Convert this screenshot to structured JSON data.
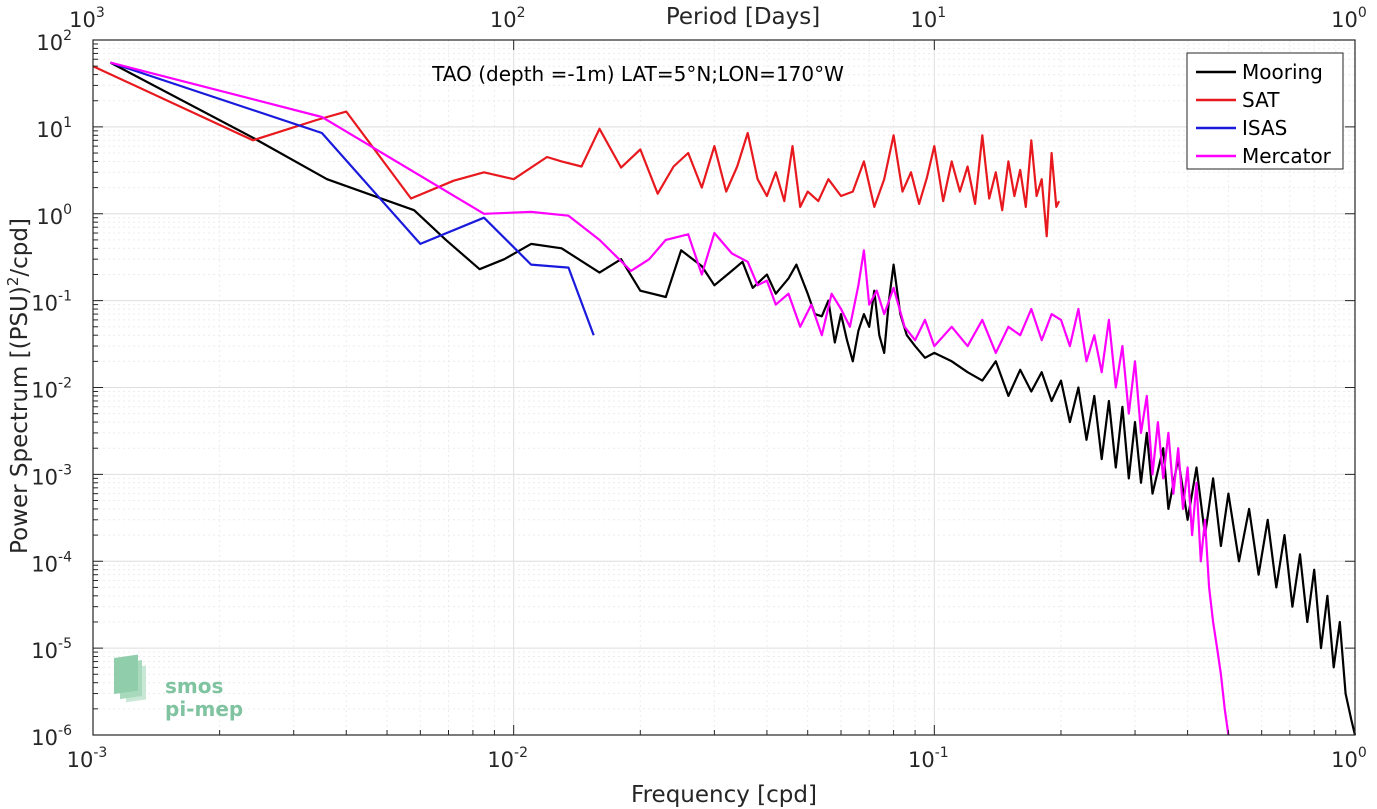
{
  "chart_data": {
    "type": "line",
    "title": "TAO (depth =-1m) LAT=5°N;LON=170°W",
    "xlabel": "Frequency [cpd]",
    "ylabel_main": "Power Spectrum [(PSU)",
    "ylabel_sup": "2",
    "ylabel_tail": "/cpd]",
    "top_xlabel": "Period [Days]",
    "xscale": "log",
    "yscale": "log",
    "xlim": [
      0.001,
      1
    ],
    "ylim": [
      1e-06,
      100
    ],
    "grid": true,
    "legend_position": "top-right",
    "x_ticks": [
      {
        "base": "10",
        "exp": "-3"
      },
      {
        "base": "10",
        "exp": "-2"
      },
      {
        "base": "10",
        "exp": "-1"
      },
      {
        "base": "10",
        "exp": "0"
      }
    ],
    "top_ticks": [
      {
        "base": "10",
        "exp": "3"
      },
      {
        "base": "10",
        "exp": "2"
      },
      {
        "base": "10",
        "exp": "1"
      },
      {
        "base": "10",
        "exp": "0"
      }
    ],
    "y_ticks": [
      {
        "base": "10",
        "exp": "-6"
      },
      {
        "base": "10",
        "exp": "-5"
      },
      {
        "base": "10",
        "exp": "-4"
      },
      {
        "base": "10",
        "exp": "-3"
      },
      {
        "base": "10",
        "exp": "-2"
      },
      {
        "base": "10",
        "exp": "-1"
      },
      {
        "base": "10",
        "exp": "0"
      },
      {
        "base": "10",
        "exp": "1"
      },
      {
        "base": "10",
        "exp": "2"
      }
    ],
    "series": [
      {
        "name": "Mooring",
        "color": "#000000",
        "points": [
          [
            0.0011,
            55
          ],
          [
            0.0024,
            7.5
          ],
          [
            0.0036,
            2.5
          ],
          [
            0.0058,
            1.1
          ],
          [
            0.0069,
            0.5
          ],
          [
            0.0083,
            0.23
          ],
          [
            0.0095,
            0.3
          ],
          [
            0.011,
            0.45
          ],
          [
            0.013,
            0.4
          ],
          [
            0.016,
            0.21
          ],
          [
            0.018,
            0.3
          ],
          [
            0.02,
            0.13
          ],
          [
            0.023,
            0.11
          ],
          [
            0.025,
            0.38
          ],
          [
            0.028,
            0.25
          ],
          [
            0.03,
            0.15
          ],
          [
            0.033,
            0.22
          ],
          [
            0.035,
            0.28
          ],
          [
            0.037,
            0.14
          ],
          [
            0.04,
            0.2
          ],
          [
            0.042,
            0.12
          ],
          [
            0.045,
            0.18
          ],
          [
            0.047,
            0.26
          ],
          [
            0.05,
            0.12
          ],
          [
            0.052,
            0.07
          ],
          [
            0.054,
            0.066
          ],
          [
            0.056,
            0.1
          ],
          [
            0.058,
            0.033
          ],
          [
            0.06,
            0.07
          ],
          [
            0.062,
            0.035
          ],
          [
            0.064,
            0.02
          ],
          [
            0.066,
            0.045
          ],
          [
            0.068,
            0.07
          ],
          [
            0.07,
            0.05
          ],
          [
            0.072,
            0.13
          ],
          [
            0.074,
            0.04
          ],
          [
            0.076,
            0.025
          ],
          [
            0.078,
            0.1
          ],
          [
            0.08,
            0.26
          ],
          [
            0.083,
            0.07
          ],
          [
            0.086,
            0.04
          ],
          [
            0.09,
            0.03
          ],
          [
            0.095,
            0.022
          ],
          [
            0.1,
            0.025
          ],
          [
            0.11,
            0.02
          ],
          [
            0.12,
            0.015
          ],
          [
            0.13,
            0.012
          ],
          [
            0.14,
            0.02
          ],
          [
            0.15,
            0.008
          ],
          [
            0.16,
            0.016
          ],
          [
            0.17,
            0.009
          ],
          [
            0.18,
            0.015
          ],
          [
            0.19,
            0.007
          ],
          [
            0.2,
            0.012
          ],
          [
            0.21,
            0.004
          ],
          [
            0.22,
            0.01
          ],
          [
            0.23,
            0.0025
          ],
          [
            0.24,
            0.008
          ],
          [
            0.25,
            0.0015
          ],
          [
            0.26,
            0.007
          ],
          [
            0.27,
            0.0012
          ],
          [
            0.28,
            0.006
          ],
          [
            0.29,
            0.0009
          ],
          [
            0.3,
            0.004
          ],
          [
            0.31,
            0.0008
          ],
          [
            0.32,
            0.003
          ],
          [
            0.33,
            0.0006
          ],
          [
            0.35,
            0.002
          ],
          [
            0.36,
            0.0004
          ],
          [
            0.38,
            0.0015
          ],
          [
            0.4,
            0.0003
          ],
          [
            0.42,
            0.0012
          ],
          [
            0.44,
            0.0002
          ],
          [
            0.46,
            0.0009
          ],
          [
            0.48,
            0.00015
          ],
          [
            0.5,
            0.0006
          ],
          [
            0.53,
            0.0001
          ],
          [
            0.56,
            0.0004
          ],
          [
            0.59,
            7e-05
          ],
          [
            0.62,
            0.0003
          ],
          [
            0.65,
            5e-05
          ],
          [
            0.68,
            0.0002
          ],
          [
            0.71,
            3e-05
          ],
          [
            0.74,
            0.00012
          ],
          [
            0.77,
            2e-05
          ],
          [
            0.8,
            8e-05
          ],
          [
            0.83,
            1e-05
          ],
          [
            0.86,
            4e-05
          ],
          [
            0.89,
            6e-06
          ],
          [
            0.92,
            2e-05
          ],
          [
            0.95,
            3e-06
          ],
          [
            0.98,
            1.5e-06
          ],
          [
            1.0,
            1e-06
          ]
        ]
      },
      {
        "name": "SAT",
        "color": "#e8191e",
        "points": [
          [
            0.001,
            50
          ],
          [
            0.0024,
            7
          ],
          [
            0.0034,
            12
          ],
          [
            0.004,
            15
          ],
          [
            0.0057,
            1.5
          ],
          [
            0.0072,
            2.4
          ],
          [
            0.0085,
            3
          ],
          [
            0.01,
            2.5
          ],
          [
            0.012,
            4.5
          ],
          [
            0.013,
            4
          ],
          [
            0.0145,
            3.5
          ],
          [
            0.016,
            9.5
          ],
          [
            0.018,
            3.4
          ],
          [
            0.02,
            5.5
          ],
          [
            0.022,
            1.7
          ],
          [
            0.024,
            3.5
          ],
          [
            0.026,
            5
          ],
          [
            0.028,
            2
          ],
          [
            0.03,
            6
          ],
          [
            0.032,
            1.8
          ],
          [
            0.034,
            3.5
          ],
          [
            0.036,
            8.5
          ],
          [
            0.038,
            2.5
          ],
          [
            0.04,
            1.6
          ],
          [
            0.042,
            3
          ],
          [
            0.044,
            1.4
          ],
          [
            0.046,
            6
          ],
          [
            0.048,
            1.2
          ],
          [
            0.05,
            1.8
          ],
          [
            0.053,
            1.4
          ],
          [
            0.056,
            2.5
          ],
          [
            0.06,
            1.6
          ],
          [
            0.064,
            1.8
          ],
          [
            0.068,
            4
          ],
          [
            0.072,
            1.2
          ],
          [
            0.076,
            2.5
          ],
          [
            0.08,
            8
          ],
          [
            0.084,
            1.8
          ],
          [
            0.088,
            3
          ],
          [
            0.092,
            1.3
          ],
          [
            0.096,
            2.6
          ],
          [
            0.1,
            6
          ],
          [
            0.105,
            1.4
          ],
          [
            0.11,
            4
          ],
          [
            0.115,
            1.8
          ],
          [
            0.12,
            3.5
          ],
          [
            0.125,
            1.3
          ],
          [
            0.13,
            8
          ],
          [
            0.135,
            1.5
          ],
          [
            0.14,
            3
          ],
          [
            0.145,
            1.1
          ],
          [
            0.15,
            4
          ],
          [
            0.155,
            1.6
          ],
          [
            0.16,
            3.2
          ],
          [
            0.165,
            1.2
          ],
          [
            0.17,
            7
          ],
          [
            0.175,
            1.6
          ],
          [
            0.18,
            2.5
          ],
          [
            0.185,
            0.55
          ],
          [
            0.19,
            5
          ],
          [
            0.195,
            1.2
          ],
          [
            0.198,
            1.4
          ]
        ]
      },
      {
        "name": "ISAS",
        "color": "#1a1adc",
        "points": [
          [
            0.0011,
            55
          ],
          [
            0.0035,
            8.5
          ],
          [
            0.006,
            0.45
          ],
          [
            0.0085,
            0.9
          ],
          [
            0.011,
            0.26
          ],
          [
            0.0135,
            0.24
          ],
          [
            0.0155,
            0.04
          ]
        ]
      },
      {
        "name": "Mercator",
        "color": "#ff00ff",
        "points": [
          [
            0.0011,
            55
          ],
          [
            0.0035,
            13
          ],
          [
            0.0085,
            1
          ],
          [
            0.011,
            1.05
          ],
          [
            0.0135,
            0.95
          ],
          [
            0.016,
            0.5
          ],
          [
            0.019,
            0.22
          ],
          [
            0.021,
            0.3
          ],
          [
            0.023,
            0.5
          ],
          [
            0.026,
            0.58
          ],
          [
            0.028,
            0.2
          ],
          [
            0.03,
            0.6
          ],
          [
            0.033,
            0.35
          ],
          [
            0.036,
            0.28
          ],
          [
            0.038,
            0.15
          ],
          [
            0.04,
            0.17
          ],
          [
            0.042,
            0.09
          ],
          [
            0.045,
            0.12
          ],
          [
            0.048,
            0.05
          ],
          [
            0.051,
            0.09
          ],
          [
            0.054,
            0.04
          ],
          [
            0.057,
            0.12
          ],
          [
            0.06,
            0.08
          ],
          [
            0.063,
            0.05
          ],
          [
            0.066,
            0.15
          ],
          [
            0.068,
            0.38
          ],
          [
            0.07,
            0.09
          ],
          [
            0.073,
            0.13
          ],
          [
            0.076,
            0.07
          ],
          [
            0.08,
            0.14
          ],
          [
            0.085,
            0.05
          ],
          [
            0.09,
            0.035
          ],
          [
            0.095,
            0.06
          ],
          [
            0.1,
            0.03
          ],
          [
            0.11,
            0.05
          ],
          [
            0.12,
            0.03
          ],
          [
            0.13,
            0.06
          ],
          [
            0.14,
            0.025
          ],
          [
            0.15,
            0.05
          ],
          [
            0.16,
            0.04
          ],
          [
            0.17,
            0.08
          ],
          [
            0.18,
            0.035
          ],
          [
            0.19,
            0.07
          ],
          [
            0.2,
            0.06
          ],
          [
            0.21,
            0.03
          ],
          [
            0.22,
            0.08
          ],
          [
            0.23,
            0.02
          ],
          [
            0.24,
            0.04
          ],
          [
            0.25,
            0.015
          ],
          [
            0.26,
            0.06
          ],
          [
            0.27,
            0.01
          ],
          [
            0.28,
            0.03
          ],
          [
            0.29,
            0.005
          ],
          [
            0.3,
            0.02
          ],
          [
            0.31,
            0.003
          ],
          [
            0.32,
            0.008
          ],
          [
            0.33,
            0.001
          ],
          [
            0.34,
            0.004
          ],
          [
            0.35,
            0.0009
          ],
          [
            0.36,
            0.003
          ],
          [
            0.37,
            0.0006
          ],
          [
            0.38,
            0.002
          ],
          [
            0.39,
            0.0004
          ],
          [
            0.4,
            0.0012
          ],
          [
            0.41,
            0.0002
          ],
          [
            0.42,
            0.0008
          ],
          [
            0.43,
            0.0001
          ],
          [
            0.44,
            0.0003
          ],
          [
            0.45,
            5e-05
          ],
          [
            0.46,
            2e-05
          ],
          [
            0.47,
            1e-05
          ],
          [
            0.48,
            5e-06
          ],
          [
            0.49,
            2e-06
          ],
          [
            0.5,
            1e-06
          ]
        ]
      }
    ]
  },
  "logo": {
    "line1": "smos",
    "line2": "pi-mep"
  }
}
